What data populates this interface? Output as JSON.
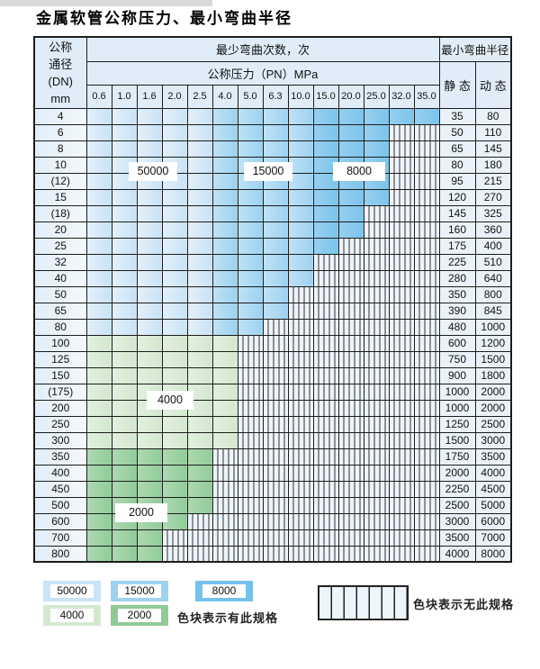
{
  "title": "金属软管公称压力、最小弯曲半径",
  "table": {
    "header": {
      "dn_line1": "公称",
      "dn_line2": "通径",
      "dn_line3": "(DN)",
      "dn_line4": "mm",
      "bend_cycles": "最少弯曲次数，次",
      "pressure": "公称压力（PN）MPa",
      "bend_radius": "最小弯曲半径",
      "static_label": "静 态",
      "dynamic_label": "动 态",
      "pressures": [
        "0.6",
        "1.0",
        "1.6",
        "2.0",
        "2.5",
        "4.0",
        "5.0",
        "6.3",
        "10.0",
        "15.0",
        "20.0",
        "25.0",
        "32.0",
        "35.0"
      ]
    },
    "rows": [
      {
        "dn": "4",
        "static": "35",
        "dynamic": "80",
        "zone": "blue",
        "colored_until": 13
      },
      {
        "dn": "6",
        "static": "50",
        "dynamic": "110",
        "zone": "blue",
        "colored_until": 11
      },
      {
        "dn": "8",
        "static": "65",
        "dynamic": "145",
        "zone": "blue",
        "colored_until": 11
      },
      {
        "dn": "10",
        "static": "80",
        "dynamic": "180",
        "zone": "blue",
        "colored_until": 11
      },
      {
        "dn": "(12)",
        "static": "95",
        "dynamic": "215",
        "zone": "blue",
        "colored_until": 11
      },
      {
        "dn": "15",
        "static": "120",
        "dynamic": "270",
        "zone": "blue",
        "colored_until": 11
      },
      {
        "dn": "(18)",
        "static": "145",
        "dynamic": "325",
        "zone": "blue",
        "colored_until": 10
      },
      {
        "dn": "20",
        "static": "160",
        "dynamic": "360",
        "zone": "blue",
        "colored_until": 10
      },
      {
        "dn": "25",
        "static": "175",
        "dynamic": "400",
        "zone": "blue",
        "colored_until": 9
      },
      {
        "dn": "32",
        "static": "225",
        "dynamic": "510",
        "zone": "blue",
        "colored_until": 8
      },
      {
        "dn": "40",
        "static": "280",
        "dynamic": "640",
        "zone": "blue",
        "colored_until": 8
      },
      {
        "dn": "50",
        "static": "350",
        "dynamic": "800",
        "zone": "blue",
        "colored_until": 7
      },
      {
        "dn": "65",
        "static": "390",
        "dynamic": "845",
        "zone": "blue",
        "colored_until": 7
      },
      {
        "dn": "80",
        "static": "480",
        "dynamic": "1000",
        "zone": "blue",
        "colored_until": 6
      },
      {
        "dn": "100",
        "static": "600",
        "dynamic": "1200",
        "zone": "green4",
        "colored_until": 5
      },
      {
        "dn": "125",
        "static": "750",
        "dynamic": "1500",
        "zone": "green4",
        "colored_until": 5
      },
      {
        "dn": "150",
        "static": "900",
        "dynamic": "1800",
        "zone": "green4",
        "colored_until": 5
      },
      {
        "dn": "(175)",
        "static": "1000",
        "dynamic": "2000",
        "zone": "green4",
        "colored_until": 5
      },
      {
        "dn": "200",
        "static": "1000",
        "dynamic": "2000",
        "zone": "green4",
        "colored_until": 5
      },
      {
        "dn": "250",
        "static": "1250",
        "dynamic": "2500",
        "zone": "green4",
        "colored_until": 5
      },
      {
        "dn": "300",
        "static": "1500",
        "dynamic": "3000",
        "zone": "green4",
        "colored_until": 5
      },
      {
        "dn": "350",
        "static": "1750",
        "dynamic": "3500",
        "zone": "green2",
        "colored_until": 4
      },
      {
        "dn": "400",
        "static": "2000",
        "dynamic": "4000",
        "zone": "green2",
        "colored_until": 4
      },
      {
        "dn": "450",
        "static": "2250",
        "dynamic": "4500",
        "zone": "green2",
        "colored_until": 4
      },
      {
        "dn": "500",
        "static": "2500",
        "dynamic": "5000",
        "zone": "green2",
        "colored_until": 4
      },
      {
        "dn": "600",
        "static": "3000",
        "dynamic": "6000",
        "zone": "green2",
        "colored_until": 3
      },
      {
        "dn": "700",
        "static": "3500",
        "dynamic": "7000",
        "zone": "green2",
        "colored_until": 2
      },
      {
        "dn": "800",
        "static": "4000",
        "dynamic": "8000",
        "zone": "green2",
        "colored_until": 2
      }
    ],
    "overlay_labels": {
      "b50000": "50000",
      "b15000": "15000",
      "b8000": "8000",
      "b4000": "4000",
      "b2000": "2000"
    }
  },
  "legend": {
    "items": [
      {
        "label": "50000",
        "color": "#cbe3f6"
      },
      {
        "label": "15000",
        "color": "#9dd2f0"
      },
      {
        "label": "8000",
        "color": "#74c2ea"
      },
      {
        "label": "4000",
        "color": "#d4e8d0"
      },
      {
        "label": "2000",
        "color": "#8fca97"
      }
    ],
    "has_spec_text": "色块表示有此规格",
    "no_spec_text": "色块表示无此规格"
  },
  "colors": {
    "c50000": "#c8e2f6",
    "c15000": "#9dd2f0",
    "c8000": "#7cc4eb",
    "c4000": "#d3e8cf",
    "c2000": "#92cc99",
    "hatch_bg": "#edf4fb",
    "row_label_bg": "#dcebf8",
    "header_bg": "#e0edf8",
    "border": "#1c1c1c"
  }
}
